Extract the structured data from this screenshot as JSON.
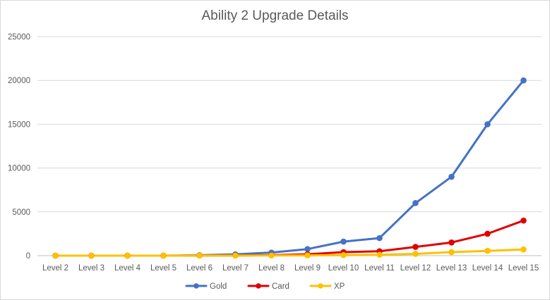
{
  "chart_data": {
    "type": "line",
    "title": "Ability 2 Upgrade Details",
    "xlabel": "",
    "ylabel": "",
    "categories": [
      "Level 2",
      "Level 3",
      "Level 4",
      "Level 5",
      "Level 6",
      "Level 7",
      "Level 8",
      "Level 9",
      "Level 10",
      "Level 11",
      "Level 12",
      "Level 13",
      "Level 14",
      "Level 15"
    ],
    "ylim": [
      0,
      25000
    ],
    "yticks": [
      0,
      5000,
      10000,
      15000,
      20000,
      25000
    ],
    "grid": "horizontal",
    "legend_position": "bottom",
    "series": [
      {
        "name": "Gold",
        "color": "#4472c4",
        "values": [
          0,
          0,
          0,
          0,
          50,
          150,
          350,
          750,
          1600,
          2000,
          6000,
          9000,
          15000,
          20000
        ]
      },
      {
        "name": "Card",
        "color": "#e00000",
        "values": [
          0,
          0,
          0,
          0,
          10,
          20,
          50,
          150,
          400,
          500,
          1000,
          1500,
          2500,
          4000
        ]
      },
      {
        "name": "XP",
        "color": "#ffc000",
        "values": [
          0,
          0,
          0,
          0,
          5,
          10,
          20,
          30,
          60,
          100,
          200,
          400,
          550,
          700
        ]
      }
    ]
  }
}
